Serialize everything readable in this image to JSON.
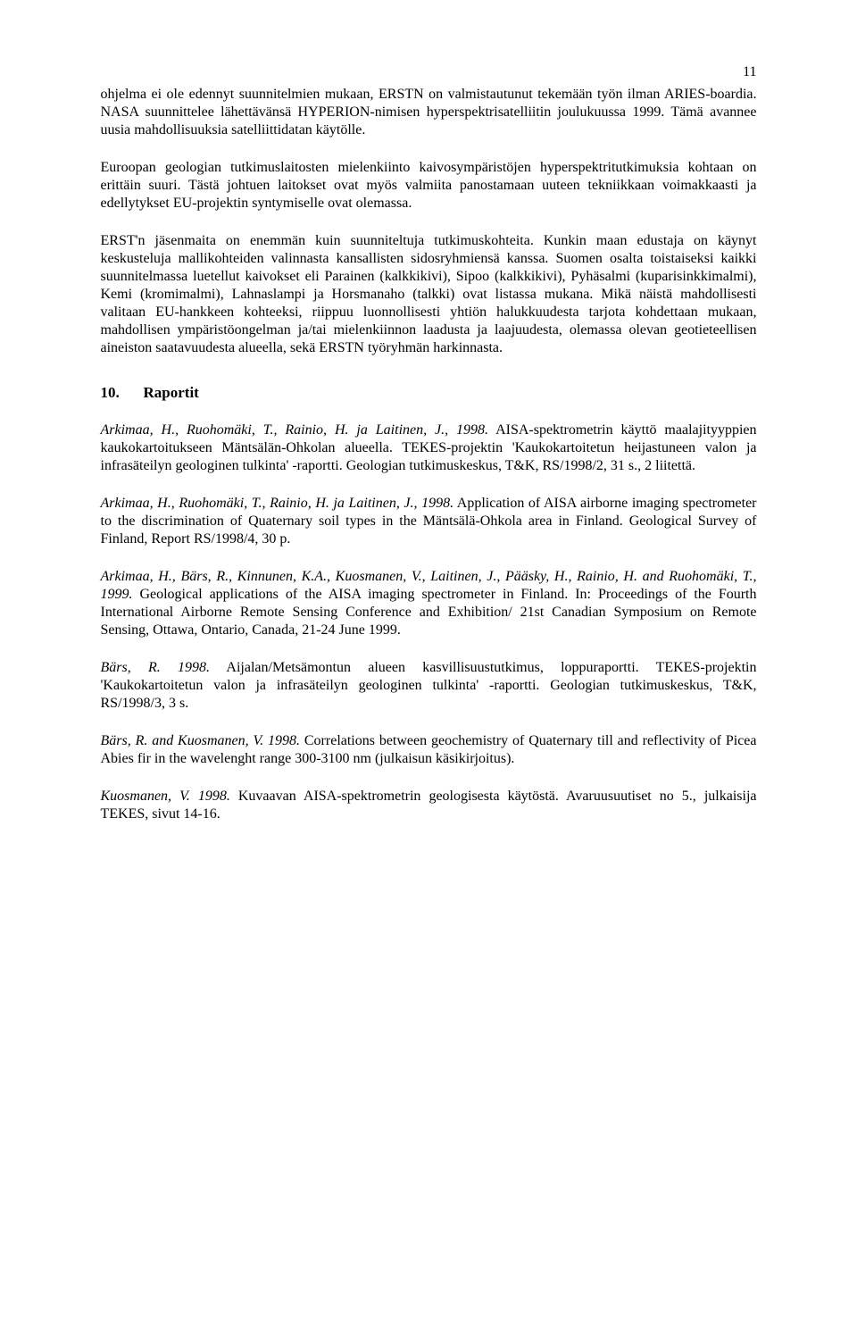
{
  "page_number": "11",
  "paragraphs": {
    "p1": "ohjelma ei ole edennyt suunnitelmien mukaan, ERSTN on valmistautunut tekemään työn ilman ARIES-boardia. NASA suunnittelee lähettävänsä HYPERION-nimisen hyperspektrisatelliitin joulukuussa 1999. Tämä avannee uusia mahdollisuuksia satelliittidatan käytölle.",
    "p2": "Euroopan geologian tutkimuslaitosten mielenkiinto kaivosympäristöjen hyperspektritutkimuksia kohtaan on erittäin suuri. Tästä johtuen laitokset ovat myös valmiita panostamaan uuteen tekniikkaan voimakkaasti ja edellytykset EU-projektin syntymiselle ovat olemassa.",
    "p3": "ERST'n jäsenmaita on enemmän kuin suunniteltuja tutkimuskohteita. Kunkin maan edustaja on käynyt keskusteluja mallikohteiden valinnasta kansallisten sidosryhmiensä kanssa. Suomen osalta toistaiseksi  kaikki suunnitelmassa luetellut kaivokset eli Parainen (kalkkikivi), Sipoo (kalkkikivi), Pyhäsalmi (kuparisinkkimalmi), Kemi (kromimalmi), Lahnaslampi ja Horsmanaho (talkki) ovat listassa mukana. Mikä näistä mahdollisesti valitaan EU-hankkeen kohteeksi, riippuu luonnollisesti yhtiön halukkuudesta tarjota kohdettaan mukaan, mahdollisen ympäristöongelman ja/tai mielenkiinnon laadusta ja laajuudesta, olemassa olevan geotieteellisen aineiston saatavuudesta alueella, sekä ERSTN työryhmän harkinnasta."
  },
  "section": {
    "number": "10.",
    "title": "Raportit"
  },
  "refs": {
    "r1": {
      "authors": "Arkimaa, H., Ruohomäki, T., Rainio, H. ja Laitinen, J., 1998.",
      "rest": " AISA-spektrometrin käyttö maalajityyppien kaukokartoitukseen Mäntsälän-Ohkolan alueella. TEKES-projektin 'Kaukokartoitetun heijastuneen valon ja infrasäteilyn geologinen tulkinta' -raportti. Geologian tutkimuskeskus, T&K, RS/1998/2, 31 s., 2 liitettä."
    },
    "r2": {
      "authors": "Arkimaa, H., Ruohomäki, T., Rainio, H. ja Laitinen, J., 1998.",
      "rest": " Application of AISA airborne imaging spectrometer to the discrimination of Quaternary soil types in the Mäntsälä-Ohkola area in Finland. Geological Survey of Finland, Report RS/1998/4, 30 p."
    },
    "r3": {
      "authors": "Arkimaa, H., Bärs, R., Kinnunen, K.A., Kuosmanen, V., Laitinen, J., Pääsky, H., Rainio, H. and Ruohomäki, T., 1999.",
      "rest": " Geological applications of the AISA imaging spectrometer in Finland. In: Proceedings of the Fourth International Airborne Remote Sensing Conference and Exhibition/ 21st Canadian Symposium on Remote Sensing, Ottawa, Ontario, Canada, 21-24 June 1999."
    },
    "r4": {
      "authors": "Bärs, R. 1998.",
      "rest": "  Aijalan/Metsämontun alueen kasvillisuustutkimus, loppuraportti. TEKES-projektin 'Kaukokartoitetun valon ja infrasäteilyn geologinen tulkinta' -raportti. Geologian tutkimuskeskus, T&K, RS/1998/3, 3 s."
    },
    "r5": {
      "authors": "Bärs, R. and Kuosmanen, V. 1998.",
      "rest": " Correlations between geochemistry of Quaternary till and reflectivity of Picea Abies fir in the wavelenght range 300-3100 nm (julkaisun käsikirjoitus)."
    },
    "r6": {
      "authors": "Kuosmanen, V. 1998.",
      "rest": " Kuvaavan AISA-spektrometrin geologisesta käytöstä. Avaruusuutiset no 5., julkaisija TEKES, sivut 14-16."
    }
  }
}
